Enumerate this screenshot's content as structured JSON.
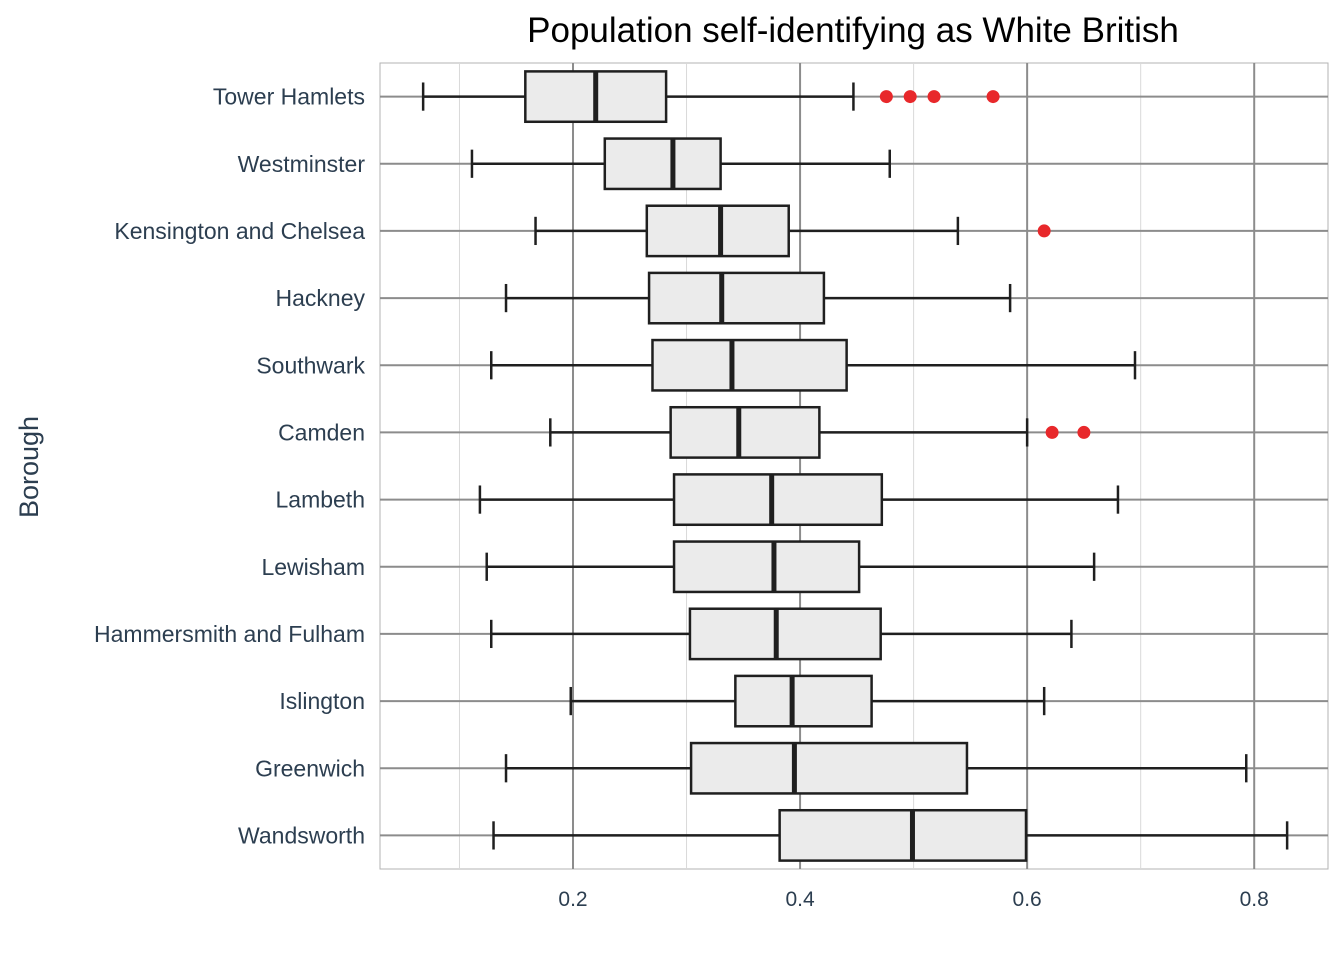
{
  "chart_data": {
    "type": "boxplot",
    "title": "Population self-identifying as White British",
    "xlabel": "",
    "ylabel": "Borough",
    "xlim": [
      0.03,
      0.865
    ],
    "xticks": [
      0.2,
      0.4,
      0.6,
      0.8
    ],
    "xtick_labels": [
      "0.2",
      "0.4",
      "0.6",
      "0.8"
    ],
    "grid": true,
    "outlier_color": "#e8282b",
    "box_fill": "#ebebeb",
    "box_stroke": "#1f1f1f",
    "categories": [
      "Tower Hamlets",
      "Westminster",
      "Kensington and Chelsea",
      "Hackney",
      "Southwark",
      "Camden",
      "Lambeth",
      "Lewisham",
      "Hammersmith and Fulham",
      "Islington",
      "Greenwich",
      "Wandsworth"
    ],
    "boxes": [
      {
        "label": "Tower Hamlets",
        "whisker_low": 0.068,
        "q1": 0.158,
        "median": 0.22,
        "q3": 0.282,
        "whisker_high": 0.447,
        "outliers": [
          0.476,
          0.497,
          0.518,
          0.57
        ]
      },
      {
        "label": "Westminster",
        "whisker_low": 0.111,
        "q1": 0.228,
        "median": 0.288,
        "q3": 0.33,
        "whisker_high": 0.479,
        "outliers": []
      },
      {
        "label": "Kensington and Chelsea",
        "whisker_low": 0.167,
        "q1": 0.265,
        "median": 0.33,
        "q3": 0.39,
        "whisker_high": 0.539,
        "outliers": [
          0.615
        ]
      },
      {
        "label": "Hackney",
        "whisker_low": 0.141,
        "q1": 0.267,
        "median": 0.331,
        "q3": 0.421,
        "whisker_high": 0.585,
        "outliers": []
      },
      {
        "label": "Southwark",
        "whisker_low": 0.128,
        "q1": 0.27,
        "median": 0.34,
        "q3": 0.441,
        "whisker_high": 0.695,
        "outliers": []
      },
      {
        "label": "Camden",
        "whisker_low": 0.18,
        "q1": 0.286,
        "median": 0.346,
        "q3": 0.417,
        "whisker_high": 0.6,
        "outliers": [
          0.622,
          0.65
        ]
      },
      {
        "label": "Lambeth",
        "whisker_low": 0.118,
        "q1": 0.289,
        "median": 0.375,
        "q3": 0.472,
        "whisker_high": 0.68,
        "outliers": []
      },
      {
        "label": "Lewisham",
        "whisker_low": 0.124,
        "q1": 0.289,
        "median": 0.377,
        "q3": 0.452,
        "whisker_high": 0.659,
        "outliers": []
      },
      {
        "label": "Hammersmith and Fulham",
        "whisker_low": 0.128,
        "q1": 0.303,
        "median": 0.379,
        "q3": 0.471,
        "whisker_high": 0.639,
        "outliers": []
      },
      {
        "label": "Islington",
        "whisker_low": 0.198,
        "q1": 0.343,
        "median": 0.393,
        "q3": 0.463,
        "whisker_high": 0.615,
        "outliers": []
      },
      {
        "label": "Greenwich",
        "whisker_low": 0.141,
        "q1": 0.304,
        "median": 0.395,
        "q3": 0.547,
        "whisker_high": 0.793,
        "outliers": []
      },
      {
        "label": "Wandsworth",
        "whisker_low": 0.13,
        "q1": 0.382,
        "median": 0.499,
        "q3": 0.599,
        "whisker_high": 0.829,
        "outliers": []
      }
    ]
  }
}
